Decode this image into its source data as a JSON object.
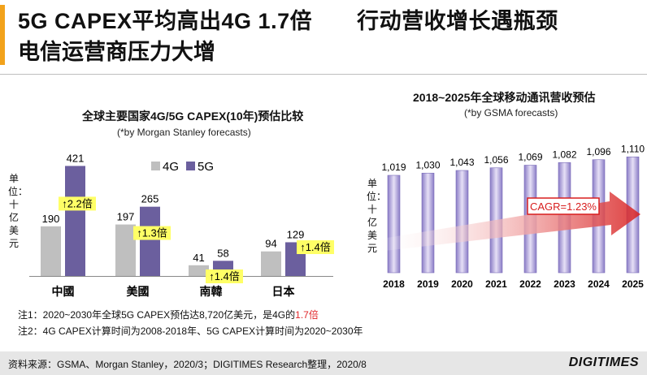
{
  "header": {
    "title_line1": "5G CAPEX平均高出4G 1.7倍　　行动营收增长遇瓶颈",
    "title_line2": "电信运营商压力大增"
  },
  "left_panel": {
    "title": "全球主要国家4G/5G CAPEX(10年)预估比较",
    "subtitle": "(*by Morgan Stanley forecasts)",
    "ylabel": "单位：十亿美元",
    "notes": [
      {
        "prefix": "注1：2020~2030年全球5G CAPEX预估达8,720亿美元，是4G的",
        "highlight": "1.7倍",
        "suffix": ""
      },
      {
        "prefix": "注2：4G CAPEX计算时间为2008-2018年、5G CAPEX计算时间为2020~2030年",
        "highlight": "",
        "suffix": ""
      }
    ]
  },
  "right_panel": {
    "title": "2018~2025年全球移动通讯营收预估",
    "subtitle": "(*by GSMA forecasts)",
    "ylabel": "单位：十亿美元",
    "cagr_label": "CAGR=1.23%"
  },
  "footer": {
    "source": "资料来源：GSMA、Morgan Stanley，2020/3；DIGITIMES Research整理，2020/8",
    "logo": "DIGITIMES"
  },
  "chart_data": [
    {
      "type": "bar",
      "title": "全球主要国家4G/5G CAPEX(10年)预估比较",
      "subtitle": "(*by Morgan Stanley forecasts)",
      "ylabel": "单位：十亿美元",
      "categories": [
        "中國",
        "美國",
        "南韓",
        "日本"
      ],
      "series": [
        {
          "name": "4G",
          "values": [
            190,
            197,
            41,
            94
          ],
          "color": "#bfbfbf"
        },
        {
          "name": "5G",
          "values": [
            421,
            265,
            58,
            129
          ],
          "color": "#6b5f9e"
        }
      ],
      "annotations": [
        "↑2.2倍",
        "↑1.3倍",
        "↑1.4倍",
        "↑1.4倍"
      ],
      "annotation_color": "#ffff66",
      "ylim": [
        0,
        450
      ],
      "legend": "top"
    },
    {
      "type": "bar",
      "title": "2018~2025年全球移动通讯营收预估",
      "subtitle": "(*by GSMA forecasts)",
      "ylabel": "单位：十亿美元",
      "categories": [
        "2018",
        "2019",
        "2020",
        "2021",
        "2022",
        "2023",
        "2024",
        "2025"
      ],
      "values": [
        1019,
        1030,
        1043,
        1056,
        1069,
        1082,
        1096,
        1110
      ],
      "value_labels": [
        "1,019",
        "1,030",
        "1,043",
        "1,056",
        "1,069",
        "1,082",
        "1,096",
        "1,110"
      ],
      "annotation": "CAGR=1.23%",
      "color": "#ab9ad6"
    }
  ]
}
